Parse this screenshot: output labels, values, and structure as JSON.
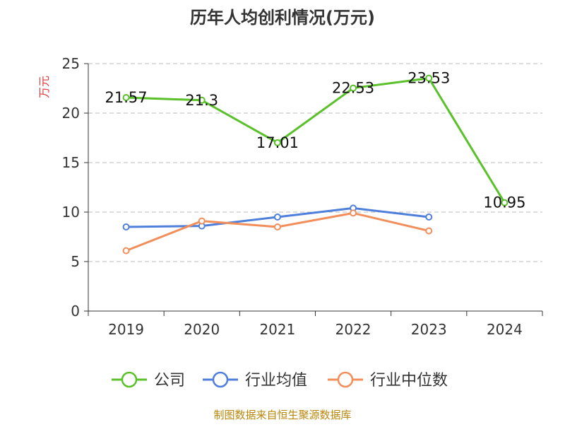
{
  "chart_data": {
    "type": "line",
    "title": "历年人均创利情况(万元)",
    "ylabel": "万元",
    "ylim": [
      0,
      25
    ],
    "yticks": [
      0,
      5,
      10,
      15,
      20,
      25
    ],
    "categories": [
      "2019",
      "2020",
      "2021",
      "2022",
      "2023",
      "2024"
    ],
    "grid": true,
    "legend_position": "bottom",
    "series": [
      {
        "name": "公司",
        "color": "#5ac12a",
        "values": [
          21.57,
          21.3,
          17.01,
          22.53,
          23.53,
          10.95
        ],
        "labels": [
          "21.57",
          "21.3",
          "17.01",
          "22.53",
          "23.53",
          "10.95"
        ]
      },
      {
        "name": "行业均值",
        "color": "#4e7fdb",
        "values": [
          8.5,
          8.6,
          9.5,
          10.4,
          9.5,
          null
        ]
      },
      {
        "name": "行业中位数",
        "color": "#f28e5a",
        "values": [
          6.1,
          9.1,
          8.5,
          9.9,
          8.1,
          null
        ]
      }
    ],
    "source_note": "制图数据来自恒生聚源数据库"
  },
  "colors": {
    "axis": "#333333",
    "grid": "#bbbbbb",
    "ylabel": "#e03b3b",
    "source_note": "#b8860b",
    "title": "#333333"
  }
}
